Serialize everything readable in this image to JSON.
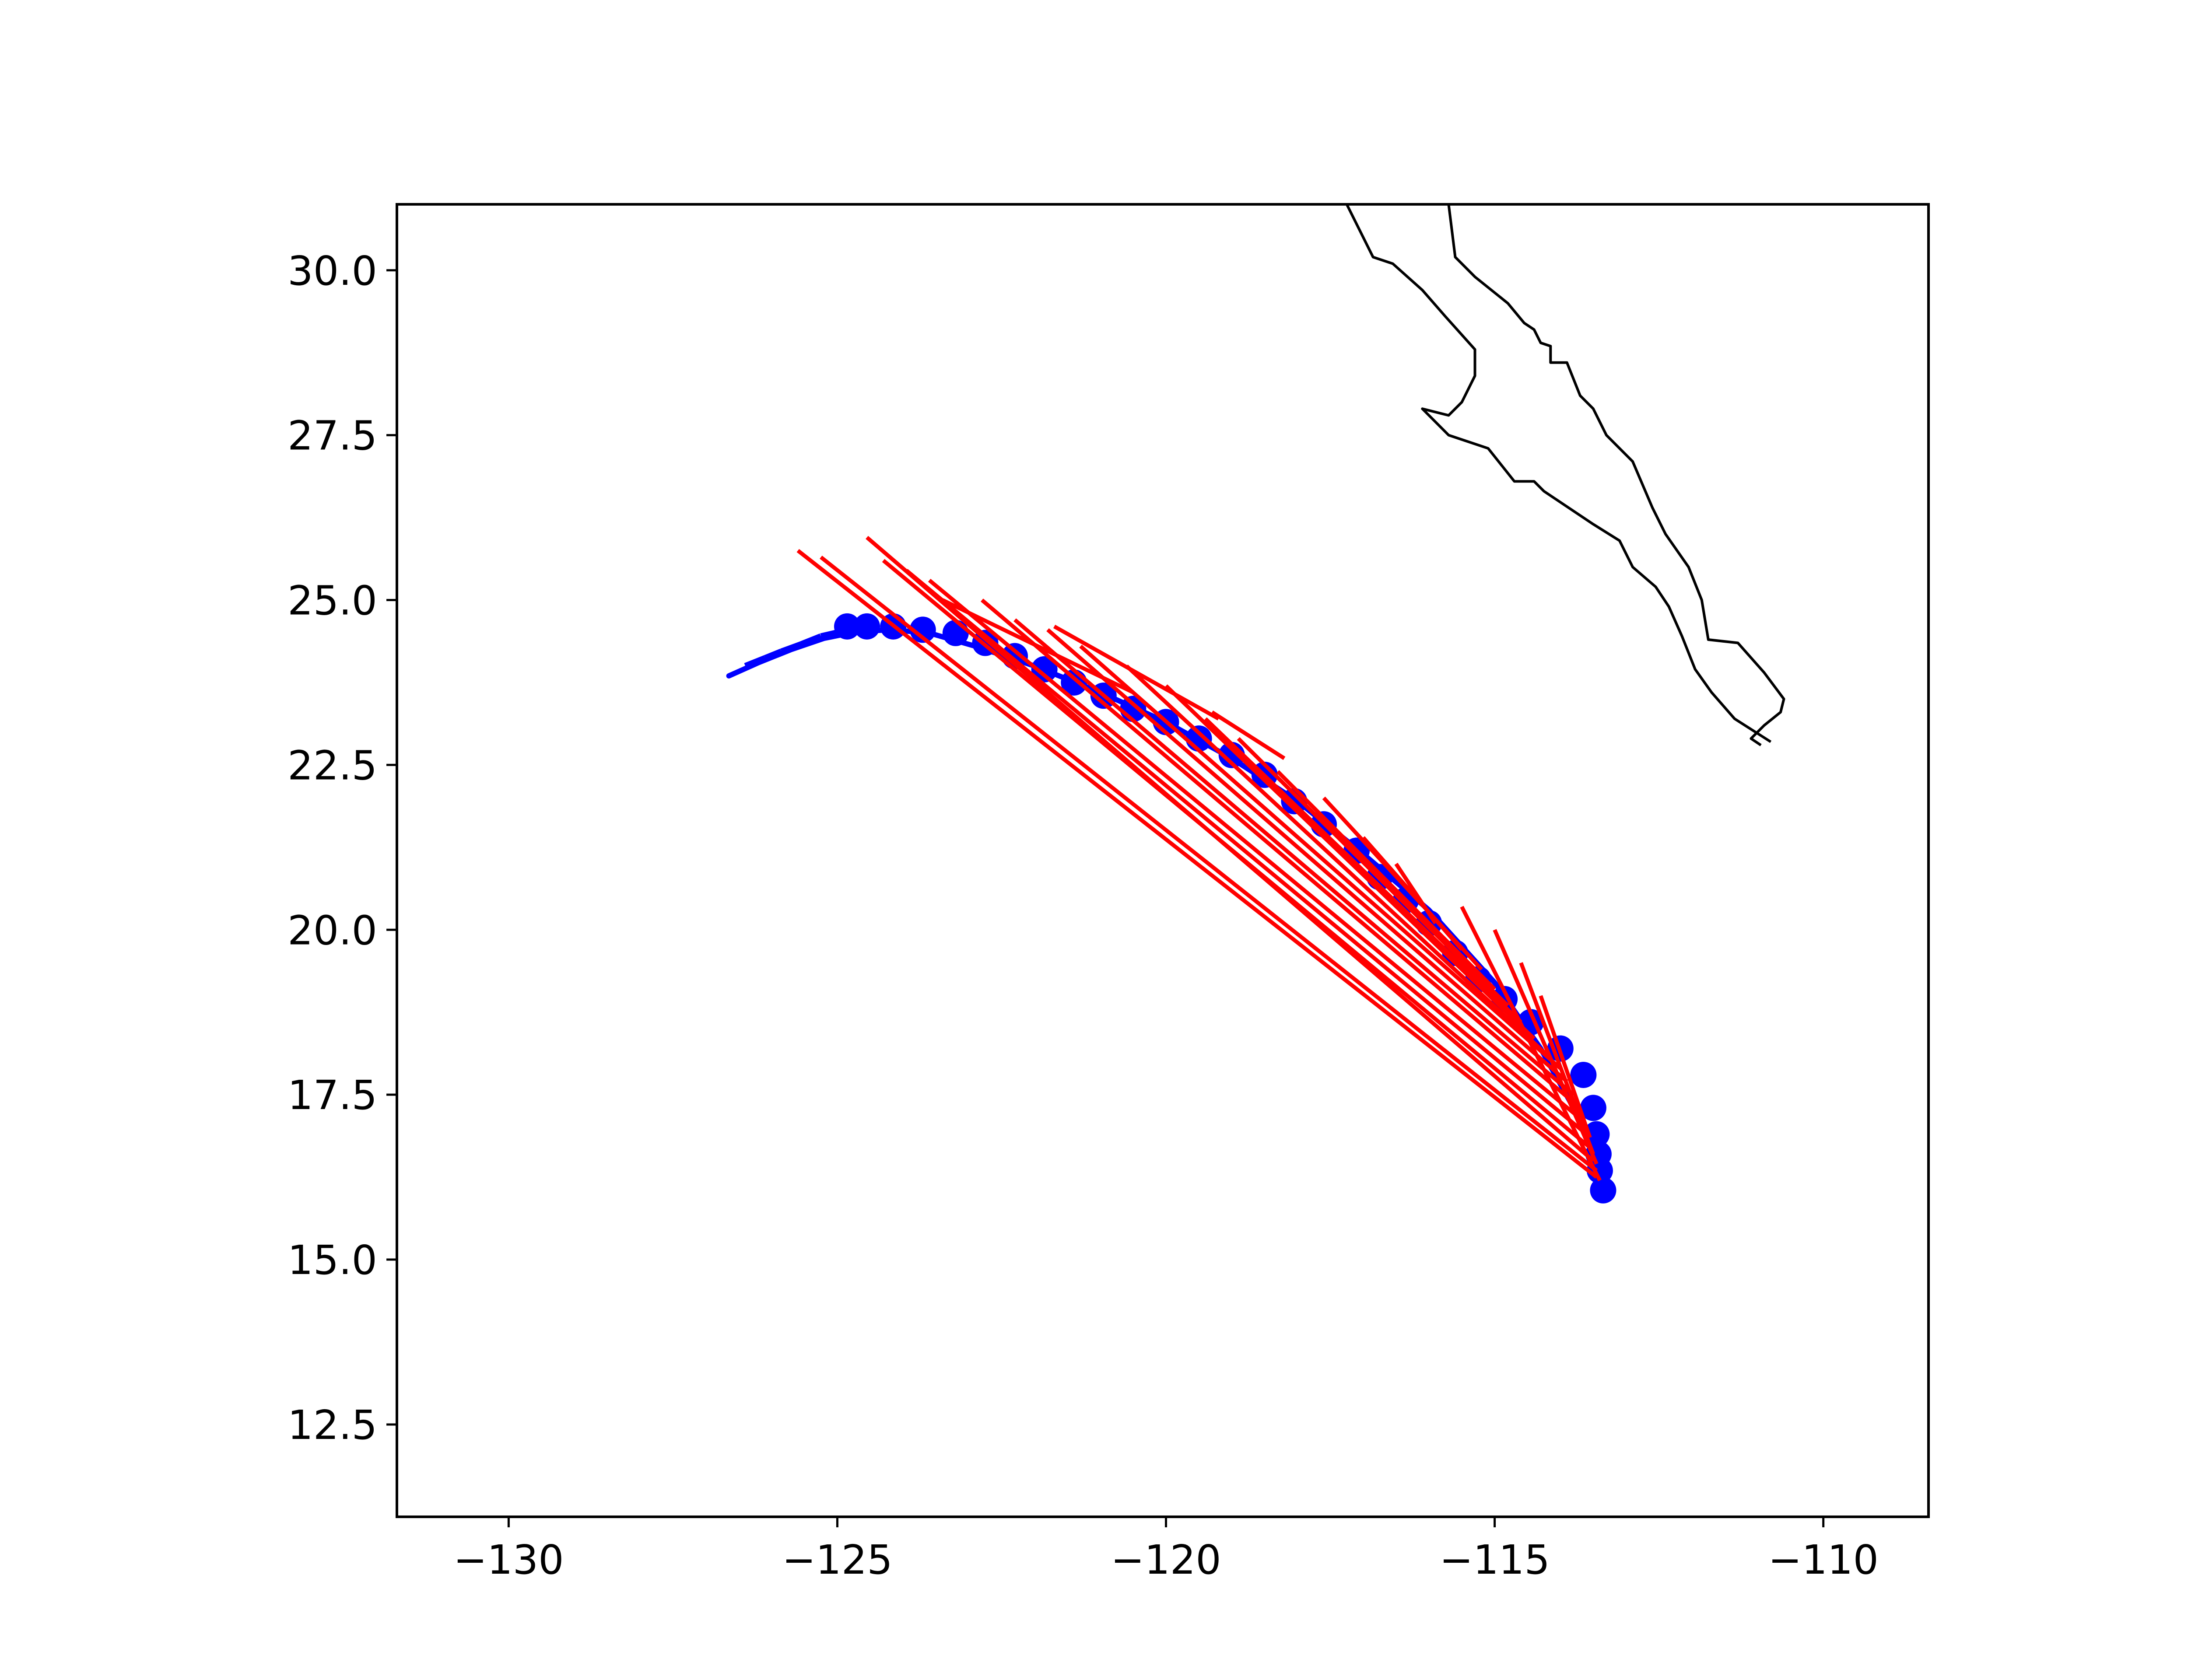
{
  "colors": {
    "observed": "#0000ff",
    "forecast": "#ff0000",
    "coast": "#000000",
    "axes": "#000000",
    "background": "#ffffff"
  },
  "chart_data": {
    "type": "line",
    "xlim": [
      -131.7,
      -108.4
    ],
    "ylim": [
      11.1,
      31.0
    ],
    "grid": false,
    "legend": "none",
    "x_ticks": [
      -130,
      -125,
      -120,
      -115,
      -110
    ],
    "x_tick_labels": [
      "−130",
      "−125",
      "−120",
      "−115",
      "−110"
    ],
    "y_ticks": [
      12.5,
      15.0,
      17.5,
      20.0,
      22.5,
      25.0,
      27.5,
      30.0
    ],
    "y_tick_labels": [
      "12.5",
      "15.0",
      "17.5",
      "20.0",
      "22.5",
      "25.0",
      "27.5",
      "30.0"
    ],
    "track_points": [
      [
        -113.35,
        16.05
      ],
      [
        -113.4,
        16.35
      ],
      [
        -113.42,
        16.6
      ],
      [
        -113.45,
        16.9
      ],
      [
        -113.5,
        17.3
      ],
      [
        -113.65,
        17.8
      ],
      [
        -114.0,
        18.2
      ],
      [
        -114.45,
        18.6
      ],
      [
        -114.85,
        18.95
      ],
      [
        -115.25,
        19.25
      ],
      [
        -115.6,
        19.65
      ],
      [
        -116.0,
        20.1
      ],
      [
        -116.35,
        20.45
      ],
      [
        -116.75,
        20.8
      ],
      [
        -117.1,
        21.2
      ],
      [
        -117.6,
        21.6
      ],
      [
        -118.05,
        21.95
      ],
      [
        -118.5,
        22.35
      ],
      [
        -119.0,
        22.65
      ],
      [
        -119.5,
        22.9
      ],
      [
        -120.0,
        23.15
      ],
      [
        -120.5,
        23.35
      ],
      [
        -120.95,
        23.55
      ],
      [
        -121.4,
        23.75
      ],
      [
        -121.85,
        23.95
      ],
      [
        -122.3,
        24.15
      ],
      [
        -122.75,
        24.35
      ],
      [
        -123.2,
        24.5
      ],
      [
        -123.7,
        24.55
      ],
      [
        -124.15,
        24.6
      ],
      [
        -124.55,
        24.6
      ],
      [
        -124.85,
        24.6
      ]
    ],
    "track_line": [
      [
        -126.65,
        23.85
      ],
      [
        -126.2,
        24.05
      ],
      [
        -125.7,
        24.25
      ],
      [
        -125.2,
        24.42
      ],
      [
        -124.7,
        24.52
      ],
      [
        -124.2,
        24.55
      ],
      [
        -123.6,
        24.5
      ],
      [
        -122.9,
        24.3
      ],
      [
        -122.0,
        24.0
      ],
      [
        -121.0,
        23.6
      ],
      [
        -120.0,
        23.15
      ],
      [
        -119.0,
        22.6
      ],
      [
        -118.0,
        21.95
      ],
      [
        -117.0,
        21.15
      ],
      [
        -116.0,
        20.3
      ],
      [
        -115.0,
        19.2
      ],
      [
        -114.3,
        18.2
      ],
      [
        -113.8,
        17.3
      ],
      [
        -113.5,
        16.6
      ],
      [
        -113.4,
        16.1
      ]
    ],
    "track_steps": [
      [
        [
          -126.4,
          24.0
        ],
        [
          -126.1,
          24.12
        ]
      ],
      [
        [
          -126.1,
          24.12
        ],
        [
          -125.85,
          24.22
        ]
      ],
      [
        [
          -125.85,
          24.22
        ],
        [
          -125.55,
          24.33
        ]
      ],
      [
        [
          -125.55,
          24.33
        ],
        [
          -125.25,
          24.45
        ]
      ],
      [
        [
          -125.25,
          24.45
        ],
        [
          -124.95,
          24.52
        ]
      ]
    ],
    "forecast_segments": [
      [
        [
          -113.45,
          16.25
        ],
        [
          -125.6,
          25.75
        ]
      ],
      [
        [
          -113.45,
          16.35
        ],
        [
          -125.25,
          25.65
        ]
      ],
      [
        [
          -113.5,
          16.5
        ],
        [
          -124.55,
          25.95
        ]
      ],
      [
        [
          -113.55,
          16.7
        ],
        [
          -124.3,
          25.6
        ]
      ],
      [
        [
          -113.6,
          16.9
        ],
        [
          -123.95,
          25.45
        ]
      ],
      [
        [
          -113.65,
          17.1
        ],
        [
          -123.6,
          25.3
        ]
      ],
      [
        [
          -113.7,
          17.3
        ],
        [
          -122.8,
          25.0
        ]
      ],
      [
        [
          -113.8,
          17.5
        ],
        [
          -122.3,
          24.7
        ]
      ],
      [
        [
          -113.9,
          17.7
        ],
        [
          -121.8,
          24.55
        ]
      ],
      [
        [
          -114.0,
          17.9
        ],
        [
          -121.3,
          24.3
        ]
      ],
      [
        [
          -114.2,
          18.1
        ],
        [
          -120.6,
          24.0
        ]
      ],
      [
        [
          -114.4,
          18.35
        ],
        [
          -120.0,
          23.7
        ]
      ],
      [
        [
          -114.6,
          18.6
        ],
        [
          -119.4,
          23.2
        ]
      ],
      [
        [
          -114.8,
          18.85
        ],
        [
          -118.9,
          22.9
        ]
      ],
      [
        [
          -115.0,
          19.1
        ],
        [
          -118.3,
          22.4
        ]
      ],
      [
        [
          -115.2,
          19.4
        ],
        [
          -117.6,
          22.0
        ]
      ],
      [
        [
          -115.5,
          19.7
        ],
        [
          -117.0,
          21.4
        ]
      ],
      [
        [
          -115.9,
          20.1
        ],
        [
          -116.5,
          21.0
        ]
      ],
      [
        [
          -113.4,
          16.2
        ],
        [
          -115.5,
          20.35
        ]
      ],
      [
        [
          -113.45,
          16.45
        ],
        [
          -115.0,
          20.0
        ]
      ],
      [
        [
          -113.5,
          16.6
        ],
        [
          -114.6,
          19.5
        ]
      ],
      [
        [
          -113.55,
          16.85
        ],
        [
          -114.3,
          19.0
        ]
      ],
      [
        [
          -118.2,
          22.6
        ],
        [
          -119.3,
          23.3
        ]
      ],
      [
        [
          -119.2,
          23.2
        ],
        [
          -121.7,
          24.6
        ]
      ],
      [
        [
          -120.5,
          23.6
        ],
        [
          -123.4,
          25.0
        ]
      ]
    ],
    "coastlines": [
      [
        [
          -115.7,
          31.0
        ],
        [
          -115.6,
          30.2
        ],
        [
          -115.3,
          29.9
        ],
        [
          -114.8,
          29.5
        ],
        [
          -114.55,
          29.2
        ],
        [
          -114.4,
          29.1
        ],
        [
          -114.3,
          28.9
        ],
        [
          -114.15,
          28.85
        ],
        [
          -114.15,
          28.6
        ],
        [
          -113.9,
          28.6
        ],
        [
          -113.7,
          28.1
        ],
        [
          -113.5,
          27.9
        ],
        [
          -113.3,
          27.5
        ],
        [
          -112.9,
          27.1
        ],
        [
          -112.6,
          26.4
        ],
        [
          -112.4,
          26.0
        ],
        [
          -112.05,
          25.5
        ],
        [
          -111.85,
          25.0
        ],
        [
          -111.75,
          24.4
        ],
        [
          -111.3,
          24.35
        ],
        [
          -110.9,
          23.9
        ],
        [
          -110.6,
          23.5
        ],
        [
          -110.65,
          23.3
        ],
        [
          -110.9,
          23.1
        ],
        [
          -111.1,
          22.9
        ],
        [
          -110.95,
          22.8
        ]
      ],
      [
        [
          -117.25,
          31.0
        ],
        [
          -116.85,
          30.2
        ],
        [
          -116.55,
          30.1
        ],
        [
          -116.1,
          29.7
        ],
        [
          -115.75,
          29.3
        ],
        [
          -115.3,
          28.8
        ],
        [
          -115.3,
          28.4
        ],
        [
          -115.5,
          28.0
        ],
        [
          -115.7,
          27.8
        ],
        [
          -116.1,
          27.9
        ],
        [
          -115.7,
          27.5
        ],
        [
          -115.1,
          27.3
        ],
        [
          -114.9,
          27.05
        ],
        [
          -114.7,
          26.8
        ],
        [
          -114.4,
          26.8
        ],
        [
          -114.25,
          26.65
        ],
        [
          -113.5,
          26.15
        ],
        [
          -113.1,
          25.9
        ],
        [
          -112.9,
          25.5
        ],
        [
          -112.55,
          25.2
        ],
        [
          -112.35,
          24.9
        ],
        [
          -112.15,
          24.45
        ],
        [
          -111.95,
          23.95
        ],
        [
          -111.7,
          23.6
        ],
        [
          -111.35,
          23.2
        ],
        [
          -110.8,
          22.85
        ]
      ]
    ]
  }
}
